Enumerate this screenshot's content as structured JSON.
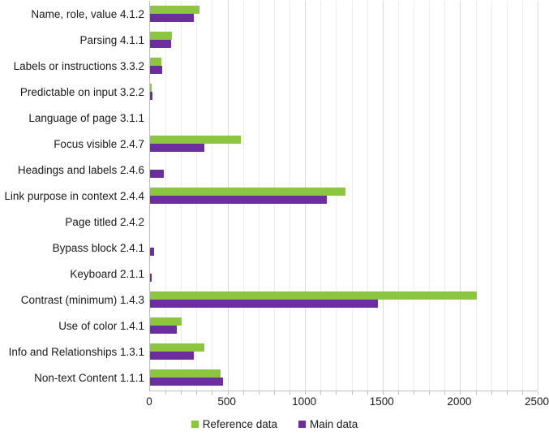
{
  "chart_data": {
    "type": "bar",
    "orientation": "horizontal",
    "title": "",
    "xlabel": "",
    "ylabel": "",
    "categories": [
      "Name, role, value 4.1.2",
      "Parsing 4.1.1",
      "Labels or instructions 3.3.2",
      "Predictable on input 3.2.2",
      "Language of page 3.1.1",
      "Focus visible 2.4.7",
      "Headings and labels 2.4.6",
      "Link purpose in context 2.4.4",
      "Page titled 2.4.2",
      "Bypass block 2.4.1",
      "Keyboard 2.1.1",
      "Contrast (minimum) 1.4.3",
      "Use of color 1.4.1",
      "Info and Relationships 1.3.1",
      "Non-text Content 1.1.1"
    ],
    "series": [
      {
        "name": "Reference data",
        "color": "#8CC63E",
        "values": [
          320,
          140,
          75,
          8,
          0,
          585,
          0,
          1260,
          0,
          0,
          0,
          2110,
          205,
          350,
          455
        ]
      },
      {
        "name": "Main data",
        "color": "#6C2E9C",
        "values": [
          285,
          135,
          80,
          14,
          0,
          350,
          90,
          1140,
          0,
          25,
          10,
          1470,
          175,
          280,
          470
        ]
      }
    ],
    "xlim": [
      0,
      2500
    ],
    "x_ticks": [
      "0",
      "500",
      "1000",
      "1500",
      "2000",
      "2500"
    ],
    "x_tick_values": [
      0,
      500,
      1000,
      1500,
      2000,
      2500
    ],
    "minor_grid_step": 100,
    "major_grid_step": 500,
    "grid": "on",
    "legend_position": "bottom"
  }
}
